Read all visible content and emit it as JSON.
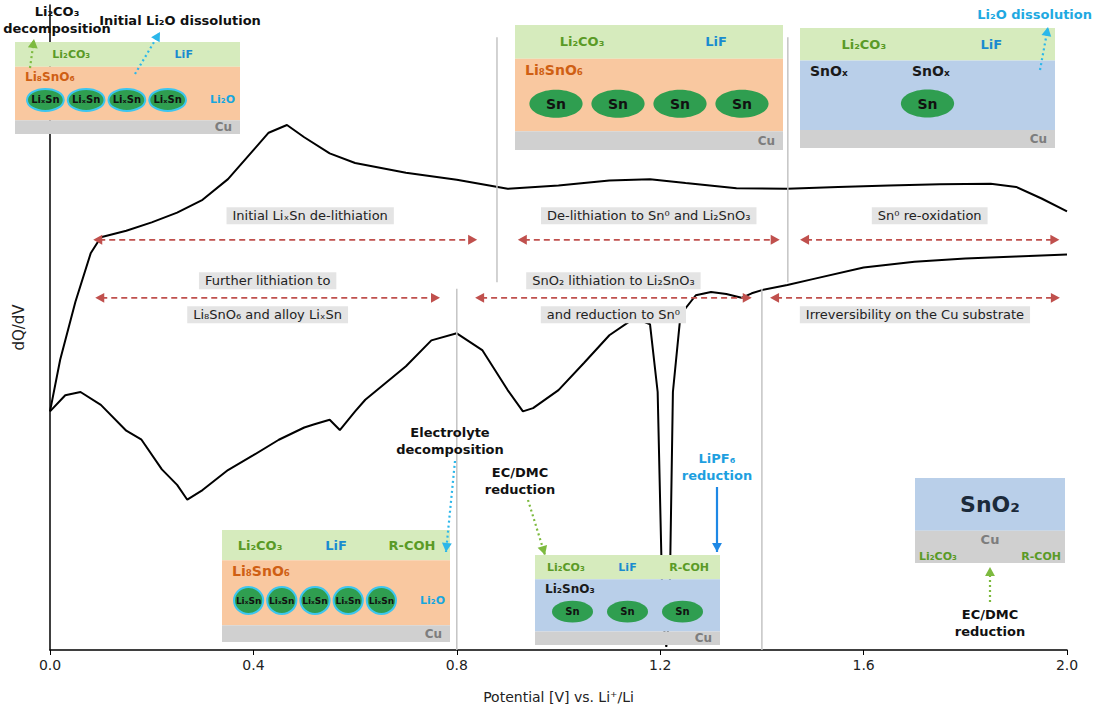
{
  "chart_data": {
    "type": "line",
    "x_label": "Potential [V] vs. Li⁺/Li",
    "y_label": "dQ/dV",
    "xlim": [
      0,
      2
    ],
    "xticks": [
      {
        "value": 0,
        "label": "0.0"
      },
      0.4,
      0.8,
      1.2,
      1.6,
      {
        "value": 2,
        "label": "2.0"
      }
    ],
    "ylim": [
      0,
      100
    ],
    "yticks": [],
    "tick_labels": "x",
    "grid": false,
    "series": [
      {
        "color": "#000000",
        "x": [
          0,
          0.02,
          0.05,
          0.08,
          0.1,
          0.15,
          0.2,
          0.25,
          0.3,
          0.35,
          0.4,
          0.43,
          0.466,
          0.5,
          0.55,
          0.6,
          0.7,
          0.8,
          0.9,
          1.0,
          1.1,
          1.18,
          1.25,
          1.35,
          1.45,
          1.55,
          1.65,
          1.75,
          1.85,
          1.9,
          1.95,
          2.0
        ],
        "values": [
          37,
          45,
          54,
          61.5,
          64,
          65,
          66.3,
          67.8,
          69.8,
          73,
          77.5,
          80.2,
          81.4,
          79.5,
          77,
          75.5,
          74,
          72.9,
          71.5,
          72,
          72.8,
          73,
          72.4,
          71.6,
          71.5,
          71.8,
          72,
          72.2,
          72.3,
          71.8,
          70,
          68
        ]
      },
      {
        "color": "#000000",
        "x": [
          0,
          0.03,
          0.06,
          0.1,
          0.15,
          0.18,
          0.22,
          0.25,
          0.27,
          0.3,
          0.35,
          0.4,
          0.45,
          0.5,
          0.52,
          0.55,
          0.57,
          0.6,
          0.62,
          0.7,
          0.75,
          0.8,
          0.85,
          0.9,
          0.93,
          0.95,
          1.0,
          1.05,
          1.1,
          1.15,
          1.18,
          1.195,
          1.205,
          1.212,
          1.218,
          1.225,
          1.24,
          1.27,
          1.3,
          1.33,
          1.36,
          1.38,
          1.4,
          1.45,
          1.5,
          1.6,
          1.7,
          1.8,
          1.9,
          2.0
        ],
        "values": [
          37,
          39.5,
          40,
          38,
          34,
          32.6,
          28,
          25.6,
          23.3,
          24.8,
          27.9,
          30.2,
          32.6,
          34.5,
          35,
          35.7,
          34.1,
          37,
          38.8,
          44,
          48,
          49.1,
          46.5,
          40.3,
          37,
          37.5,
          40.3,
          44.5,
          48.8,
          51.5,
          50.5,
          40,
          5,
          0.5,
          5,
          40,
          52,
          55,
          55.5,
          55.2,
          54.6,
          55.3,
          55.8,
          56.6,
          57.5,
          59.3,
          60.2,
          60.7,
          61,
          61.3
        ]
      }
    ],
    "upper_ranges": [
      {
        "x": [
          0.085,
          0.84
        ],
        "label": "Initial LiₓSn de-lithiation"
      },
      {
        "x": [
          0.92,
          1.435
        ],
        "label": "De-lithiation to Sn⁰ and Li₂SnO₃"
      },
      {
        "x": [
          1.475,
          1.985
        ],
        "label": "Sn⁰ re-oxidation"
      }
    ],
    "lower_ranges": [
      {
        "x": [
          0.089,
          0.767
        ],
        "lines": [
          "Further lithiation to",
          "Li₈SnO₆ and alloy LiₓSn"
        ]
      },
      {
        "x": [
          0.836,
          1.38
        ],
        "lines": [
          "SnO₂ lithiation to Li₂SnO₃",
          "and reduction to Sn⁰"
        ]
      },
      {
        "x": [
          1.416,
          1.986
        ],
        "lines": [
          "Irreversibility on the Cu substrate"
        ]
      }
    ],
    "upper_dividers": [
      0.879,
      1.451
    ],
    "lower_dividers": [
      0.8,
      1.4
    ],
    "schematics": [
      {
        "top": [
          "Li₂CO₃",
          "LiF"
        ],
        "middle": [
          "Li₈SnO₆"
        ],
        "particles": [
          "LiₓSn",
          "LiₓSn",
          "LiₓSn",
          "LiₓSn"
        ],
        "side": "Li₂O",
        "base": "Cu"
      },
      {
        "top": [
          "Li₂CO₃",
          "LiF"
        ],
        "middle": [
          "Li₈SnO₆"
        ],
        "particles": [
          "Sn",
          "Sn",
          "Sn",
          "Sn"
        ],
        "base": "Cu"
      },
      {
        "top": [
          "Li₂CO₃",
          "LiF"
        ],
        "middle": [
          "SnOₓ",
          "SnOₓ"
        ],
        "particles": [
          "Sn"
        ],
        "base": "Cu"
      },
      {
        "top": [
          "Li₂CO₃",
          "LiF",
          "R-COH"
        ],
        "middle": [
          "Li₈SnO₆"
        ],
        "particles": [
          "LiₓSn",
          "LiₓSn",
          "LiₓSn",
          "LiₓSn",
          "LiₓSn"
        ],
        "side": "Li₂O",
        "base": "Cu"
      },
      {
        "top": [
          "Li₂CO₃",
          "LiF",
          "R-COH"
        ],
        "middle": [
          "Li₂SnO₃"
        ],
        "particles": [
          "Sn",
          "Sn",
          "Sn"
        ],
        "base": "Cu"
      },
      {
        "top": [
          "SnO₂"
        ],
        "base": "Cu",
        "base_texts": [
          "Li₂CO₃",
          "R-COH"
        ]
      }
    ],
    "callouts": [
      {
        "lines": [
          "Li₂CO₃",
          "decomposition"
        ],
        "color": "#111111"
      },
      {
        "lines": [
          "Initial Li₂O dissolution"
        ],
        "color": "#111111"
      },
      {
        "lines": [
          "Li₂O dissolution"
        ],
        "color": "#1fa9e1"
      },
      {
        "lines": [
          "Electrolyte",
          "decomposition"
        ],
        "color": "#111111"
      },
      {
        "lines": [
          "EC/DMC",
          "reduction"
        ],
        "color": "#111111"
      },
      {
        "lines": [
          "LiPF₆",
          "reduction"
        ],
        "color": "#1e9fe0"
      },
      {
        "lines": [
          "EC/DMC",
          "reduction"
        ],
        "color": "#111111"
      }
    ]
  }
}
